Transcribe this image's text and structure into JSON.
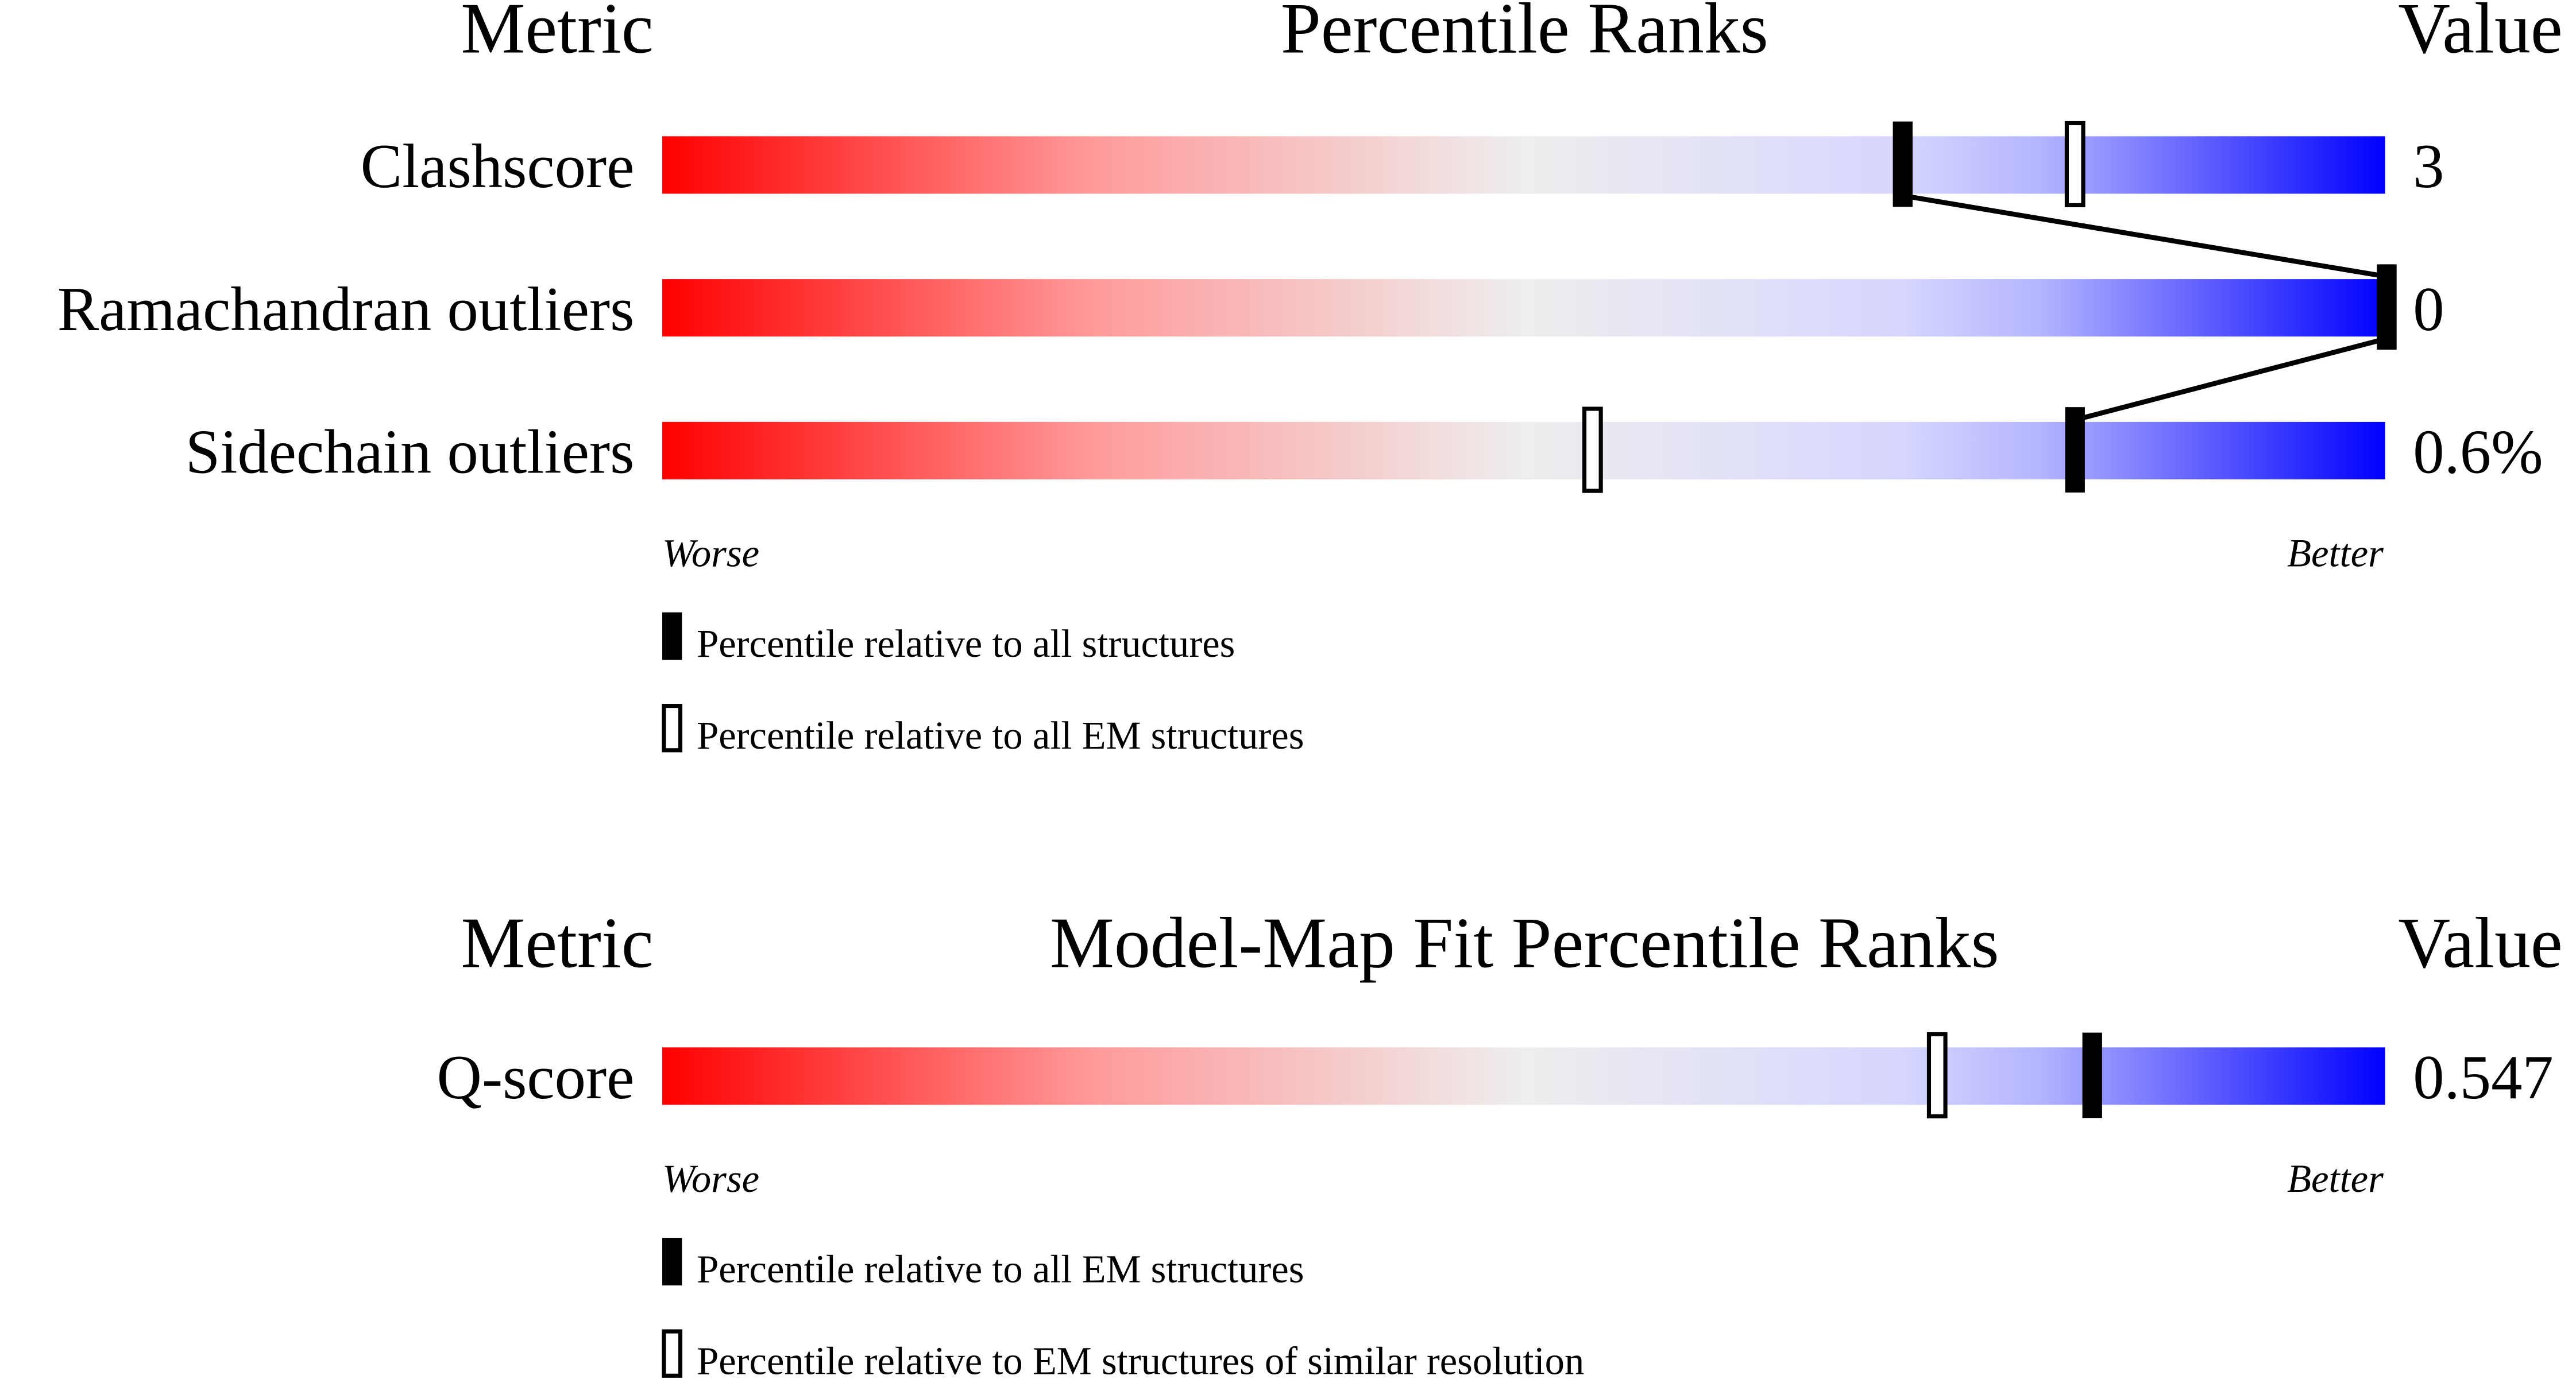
{
  "chart_data": [
    {
      "type": "bar",
      "headers": {
        "metric": "Metric",
        "title": "Percentile Ranks",
        "value": "Value"
      },
      "rows": [
        {
          "label": "Clashscore",
          "value": "3",
          "percentile_all": 72,
          "percentile_em": 82
        },
        {
          "label": "Ramachandran outliers",
          "value": "0",
          "percentile_all": 100,
          "percentile_em": 100
        },
        {
          "label": "Sidechain outliers",
          "value": "0.6%",
          "percentile_all": 82,
          "percentile_em": 54
        }
      ],
      "axis": {
        "worse": "Worse",
        "better": "Better",
        "range": [
          0,
          100
        ]
      },
      "legend": {
        "filled": "Percentile relative to all structures",
        "open": "Percentile relative to all EM structures"
      },
      "colors": {
        "worse": "#ff0000",
        "middle": "#eeeeee",
        "better": "#0000ff",
        "marker": "#000000"
      }
    },
    {
      "type": "bar",
      "headers": {
        "metric": "Metric",
        "title": "Model-Map Fit Percentile Ranks",
        "value": "Value"
      },
      "rows": [
        {
          "label": "Q-score",
          "value": "0.547",
          "percentile_all": 83,
          "percentile_em": 74
        }
      ],
      "axis": {
        "worse": "Worse",
        "better": "Better",
        "range": [
          0,
          100
        ]
      },
      "legend": {
        "filled": "Percentile relative to all EM structures",
        "open": "Percentile relative to EM structures of similar resolution"
      },
      "colors": {
        "worse": "#ff0000",
        "middle": "#eeeeee",
        "better": "#0000ff",
        "marker": "#000000"
      }
    }
  ]
}
